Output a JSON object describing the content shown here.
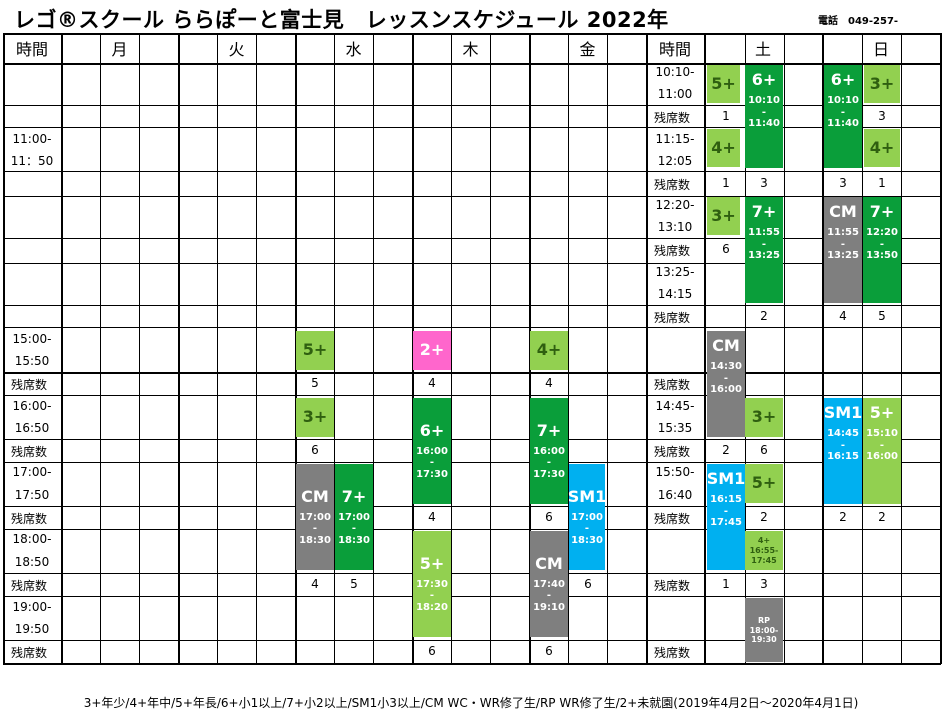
{
  "title": "レゴ®スクール ららぽーと富士見　レッスンスケジュール 2022年",
  "phone": "電話　049-257-",
  "headers": {
    "time_left": "時間",
    "mon": "月",
    "tue": "火",
    "wed": "水",
    "thu": "木",
    "fri": "金",
    "time_right": "時間",
    "sat": "土",
    "sun": "日"
  },
  "seat_label": "残席数",
  "left_times": [
    "11:00-",
    "11：50",
    "15:00-",
    "15:50",
    "16:00-",
    "16:50",
    "17:00-",
    "17:50",
    "18:00-",
    "18:50",
    "19:00-",
    "19:50"
  ],
  "right_times": [
    "10:10-",
    "11:00",
    "11:15-",
    "12:05",
    "12:20-",
    "13:10",
    "13:25-",
    "14:15",
    "14:45-",
    "15:35",
    "15:50-",
    "16:40"
  ],
  "lessons": {
    "sat_a1": {
      "level": "5+"
    },
    "sat_b1": {
      "level": "6+",
      "t1": "10:10",
      "sep": "-",
      "t2": "11:40"
    },
    "sat_a2": {
      "level": "4+"
    },
    "sat_a3": {
      "level": "3+"
    },
    "sat_b3": {
      "level": "7+",
      "t1": "11:55",
      "sep": "-",
      "t2": "13:25"
    },
    "sat_a4": {
      "level": "CM",
      "t1": "14:30",
      "sep": "-",
      "t2": "16:00"
    },
    "sat_b4": {
      "level": "3+"
    },
    "sat_b5": {
      "level": "5+"
    },
    "sat_a6": {
      "level": "SM1",
      "t1": "16:15",
      "sep": "-",
      "t2": "17:45"
    },
    "sat_b6": {
      "level": "4+",
      "t1": "16:55-",
      "sep": "",
      "t2": "17:45"
    },
    "sat_b7": {
      "level": "RP",
      "t1": "18:00-",
      "sep": "",
      "t2": "19:30"
    },
    "sun_a1": {
      "level": "6+",
      "t1": "10:10",
      "sep": "-",
      "t2": "11:40"
    },
    "sun_b1": {
      "level": "3+"
    },
    "sun_b2": {
      "level": "4+"
    },
    "sun_a3": {
      "level": "CM",
      "t1": "11:55",
      "sep": "-",
      "t2": "13:25"
    },
    "sun_b3": {
      "level": "7+",
      "t1": "12:20",
      "sep": "-",
      "t2": "13:50"
    },
    "sun_a4": {
      "level": "SM1",
      "t1": "14:45",
      "sep": "-",
      "t2": "16:15"
    },
    "sun_b4": {
      "level": "5+",
      "t1": "15:10",
      "sep": "-",
      "t2": "16:00"
    },
    "wed_1": {
      "level": "5+"
    },
    "wed_2": {
      "level": "3+"
    },
    "wed_3": {
      "level": "CM",
      "t1": "17:00",
      "sep": "-",
      "t2": "18:30"
    },
    "wed_4": {
      "level": "7+",
      "t1": "17:00",
      "sep": "-",
      "t2": "18:30"
    },
    "thu_1": {
      "level": "2+"
    },
    "thu_2": {
      "level": "6+",
      "t1": "16:00",
      "sep": "-",
      "t2": "17:30"
    },
    "thu_3": {
      "level": "5+",
      "t1": "17:30",
      "sep": "-",
      "t2": "18:20"
    },
    "fri_1": {
      "level": "4+"
    },
    "fri_2": {
      "level": "7+",
      "t1": "16:00",
      "sep": "-",
      "t2": "17:30"
    },
    "fri_3": {
      "level": "SM1",
      "t1": "17:00",
      "sep": "-",
      "t2": "18:30"
    },
    "fri_4": {
      "level": "CM",
      "t1": "17:40",
      "sep": "-",
      "t2": "19:10"
    }
  },
  "seats": {
    "s1": "1",
    "s2": "3",
    "s3": "1",
    "s4": "3",
    "s5": "3",
    "s6": "1",
    "s7": "6",
    "s8": "2",
    "s9": "4",
    "s10": "5",
    "s11": "2",
    "s12": "6",
    "s13": "2",
    "s14": "2",
    "s15": "2",
    "s16": "2",
    "s17": "1",
    "s18": "3",
    "w1": "5",
    "w2": "6",
    "w3": "4",
    "w4": "5",
    "t1": "4",
    "t2": "4",
    "t3": "6",
    "f1": "4",
    "f2": "6",
    "f3": "6",
    "f4": "6"
  },
  "footer": "3+年少/4+年中/5+年長/6+小1以上/7+小2以上/SM1小3以上/CM WC・WR修了生/RP WR修了生/2+未就園(2019年4月2日～2020年4月1日)",
  "colors": {
    "dark_green": "#0a9e3a",
    "light_green": "#92d050",
    "gray": "#7f7f7f",
    "blue": "#00b0f0",
    "pink": "#ff66cc"
  }
}
